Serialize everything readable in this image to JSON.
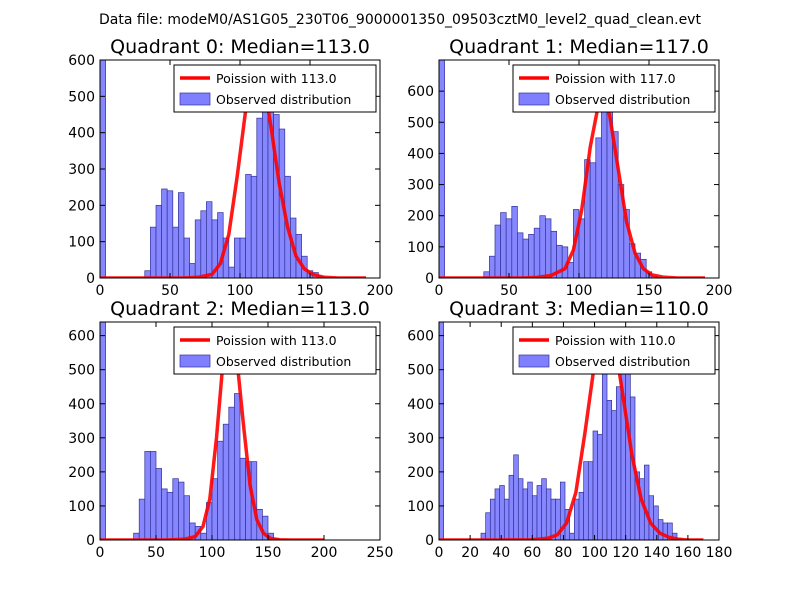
{
  "figure_title": "Data file: modeM0/AS1G05_230T06_9000001350_09503cztM0_level2_quad_clean.evt",
  "colors": {
    "bars": "#7f7fff",
    "bar_edge": "#333399",
    "poisson": "#ff0000"
  },
  "chart_data": [
    {
      "type": "bar",
      "title": "Quadrant 0: Median=113.0",
      "median": 113.0,
      "legend": {
        "position": "top-right",
        "line_label": "Poission with 113.0",
        "bar_label": "Observed distribution"
      },
      "xlim": [
        0,
        200
      ],
      "ylim": [
        0,
        600
      ],
      "xticks": [
        0,
        50,
        100,
        150,
        200
      ],
      "yticks": [
        0,
        100,
        200,
        300,
        400,
        500,
        600
      ],
      "bin_width": 4,
      "bin_starts": [
        0,
        32,
        36,
        40,
        44,
        48,
        52,
        56,
        60,
        64,
        68,
        72,
        76,
        80,
        84,
        88,
        92,
        96,
        100,
        104,
        108,
        112,
        116,
        120,
        124,
        128,
        132,
        136,
        140,
        144,
        148,
        152,
        156
      ],
      "values": [
        600,
        20,
        140,
        200,
        245,
        240,
        140,
        235,
        110,
        40,
        160,
        185,
        210,
        160,
        180,
        110,
        30,
        110,
        110,
        285,
        280,
        440,
        545,
        520,
        450,
        410,
        280,
        165,
        120,
        60,
        20,
        15,
        5
      ],
      "poisson_x": [
        0,
        20,
        40,
        60,
        70,
        80,
        86,
        92,
        98,
        104,
        110,
        116,
        122,
        128,
        134,
        140,
        146,
        152,
        160,
        170,
        180,
        190
      ],
      "poisson_y": [
        0,
        0,
        0,
        0,
        2,
        10,
        40,
        120,
        280,
        460,
        555,
        560,
        420,
        260,
        140,
        60,
        25,
        10,
        2,
        0,
        0,
        0
      ]
    },
    {
      "type": "bar",
      "title": "Quadrant 1: Median=117.0",
      "median": 117.0,
      "legend": {
        "position": "top-right",
        "line_label": "Poission with 117.0",
        "bar_label": "Observed distribution"
      },
      "xlim": [
        0,
        200
      ],
      "ylim": [
        0,
        700
      ],
      "xticks": [
        0,
        50,
        100,
        150,
        200
      ],
      "yticks": [
        0,
        100,
        200,
        300,
        400,
        500,
        600
      ],
      "bin_width": 4,
      "bin_starts": [
        0,
        32,
        36,
        40,
        44,
        48,
        52,
        56,
        60,
        64,
        68,
        72,
        76,
        80,
        84,
        88,
        92,
        96,
        100,
        104,
        108,
        112,
        116,
        120,
        124,
        128,
        132,
        136,
        140,
        144,
        148,
        152
      ],
      "values": [
        700,
        20,
        70,
        170,
        210,
        190,
        230,
        145,
        125,
        140,
        160,
        200,
        190,
        150,
        105,
        100,
        50,
        220,
        190,
        380,
        370,
        450,
        580,
        630,
        470,
        300,
        220,
        110,
        80,
        60,
        20,
        5
      ],
      "poisson_x": [
        0,
        20,
        40,
        60,
        70,
        80,
        90,
        96,
        102,
        108,
        114,
        118,
        122,
        128,
        134,
        140,
        146,
        152,
        160,
        170,
        180,
        190
      ],
      "poisson_y": [
        0,
        0,
        0,
        0,
        2,
        8,
        30,
        90,
        220,
        420,
        560,
        590,
        520,
        350,
        180,
        80,
        30,
        10,
        3,
        0,
        0,
        0
      ]
    },
    {
      "type": "bar",
      "title": "Quadrant 2: Median=113.0",
      "median": 113.0,
      "legend": {
        "position": "top-right",
        "line_label": "Poission with 113.0",
        "bar_label": "Observed distribution"
      },
      "xlim": [
        0,
        250
      ],
      "ylim": [
        0,
        640
      ],
      "xticks": [
        0,
        50,
        100,
        150,
        200,
        250
      ],
      "yticks": [
        0,
        100,
        200,
        300,
        400,
        500,
        600
      ],
      "bin_width": 5,
      "bin_starts": [
        0,
        30,
        35,
        40,
        45,
        50,
        55,
        60,
        65,
        70,
        75,
        80,
        85,
        90,
        95,
        100,
        105,
        110,
        115,
        120,
        125,
        130,
        135,
        140,
        145,
        150,
        155
      ],
      "values": [
        640,
        20,
        120,
        260,
        260,
        210,
        150,
        140,
        180,
        170,
        130,
        50,
        40,
        20,
        110,
        180,
        290,
        340,
        390,
        430,
        240,
        230,
        230,
        90,
        70,
        20,
        5
      ],
      "poisson_x": [
        0,
        30,
        60,
        75,
        85,
        92,
        98,
        104,
        110,
        116,
        122,
        128,
        134,
        140,
        146,
        152,
        160,
        170,
        180,
        200
      ],
      "poisson_y": [
        0,
        0,
        0,
        2,
        10,
        40,
        120,
        300,
        530,
        610,
        540,
        340,
        160,
        60,
        20,
        5,
        1,
        0,
        0,
        0
      ]
    },
    {
      "type": "bar",
      "title": "Quadrant 3: Median=110.0",
      "median": 110.0,
      "legend": {
        "position": "top-right",
        "line_label": "Poission with 110.0",
        "bar_label": "Observed distribution"
      },
      "xlim": [
        0,
        180
      ],
      "ylim": [
        0,
        640
      ],
      "xticks": [
        0,
        20,
        40,
        60,
        80,
        100,
        120,
        140,
        160,
        180
      ],
      "yticks": [
        0,
        100,
        200,
        300,
        400,
        500,
        600
      ],
      "bin_width": 3,
      "bin_starts": [
        0,
        27,
        30,
        33,
        36,
        39,
        42,
        45,
        48,
        51,
        54,
        57,
        60,
        63,
        66,
        69,
        72,
        75,
        78,
        81,
        84,
        87,
        90,
        93,
        96,
        99,
        102,
        105,
        108,
        111,
        114,
        117,
        120,
        123,
        126,
        129,
        132,
        135,
        138,
        141,
        144,
        147,
        150,
        153
      ],
      "values": [
        640,
        20,
        80,
        120,
        150,
        160,
        120,
        190,
        250,
        180,
        150,
        170,
        130,
        160,
        180,
        150,
        120,
        120,
        170,
        90,
        20,
        120,
        140,
        230,
        230,
        320,
        310,
        540,
        410,
        380,
        450,
        600,
        490,
        420,
        200,
        180,
        220,
        130,
        100,
        60,
        50,
        50,
        20,
        5
      ],
      "poisson_x": [
        0,
        40,
        60,
        70,
        76,
        82,
        88,
        94,
        100,
        106,
        110,
        114,
        118,
        124,
        130,
        136,
        142,
        148,
        154,
        160,
        170
      ],
      "poisson_y": [
        0,
        0,
        1,
        5,
        15,
        50,
        140,
        320,
        520,
        600,
        610,
        550,
        430,
        250,
        120,
        50,
        20,
        8,
        2,
        0,
        0
      ]
    }
  ]
}
